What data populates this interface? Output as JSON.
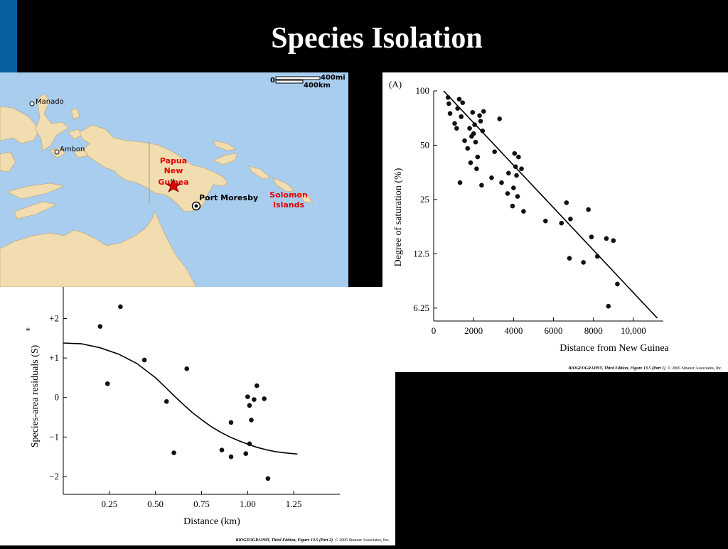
{
  "slide": {
    "title": "Species Isolation"
  },
  "map": {
    "scale": {
      "zero": "0",
      "mi": "400mi",
      "km": "400km"
    },
    "labels": {
      "manado": "Manado",
      "ambon": "Ambon",
      "png": [
        "Papua",
        "New",
        "Guinea"
      ],
      "port_moresby": "Port Moresby",
      "solomon": [
        "Solomon",
        "Islands"
      ]
    },
    "colors": {
      "ocean": "#a8cdee",
      "land": "#f1ddb0",
      "highlight": "#e00000"
    }
  },
  "chart_data": [
    {
      "type": "scatter",
      "panel_label": "(A)",
      "xlabel": "Distance from New Guinea",
      "ylabel": "Degree of saturation (%)",
      "y_scale": "log",
      "xlim": [
        0,
        11500
      ],
      "ylim": [
        5.3,
        100
      ],
      "x_ticks": [
        0,
        2000,
        4000,
        6000,
        8000,
        10000
      ],
      "x_tick_labels": [
        "0",
        "2000",
        "4000",
        "6000",
        "8000",
        "10,000"
      ],
      "y_ticks": [
        100,
        50,
        25,
        12.5,
        6.25
      ],
      "y_tick_labels": [
        "100",
        "50",
        "25",
        "12.5",
        "6.25"
      ],
      "grid": false,
      "points": [
        [
          720,
          92
        ],
        [
          760,
          85
        ],
        [
          820,
          75
        ],
        [
          1050,
          66
        ],
        [
          1150,
          62
        ],
        [
          1200,
          80
        ],
        [
          1280,
          90
        ],
        [
          1380,
          72
        ],
        [
          1450,
          86
        ],
        [
          1550,
          53
        ],
        [
          1700,
          48
        ],
        [
          1800,
          62
        ],
        [
          1850,
          40
        ],
        [
          1900,
          56
        ],
        [
          1950,
          76
        ],
        [
          2000,
          58
        ],
        [
          2050,
          65
        ],
        [
          2100,
          52
        ],
        [
          2150,
          37
        ],
        [
          2200,
          43
        ],
        [
          2300,
          73
        ],
        [
          2350,
          68
        ],
        [
          2400,
          30
        ],
        [
          2450,
          60
        ],
        [
          1320,
          31
        ],
        [
          2500,
          77
        ],
        [
          2900,
          33
        ],
        [
          3050,
          46
        ],
        [
          3300,
          70
        ],
        [
          3400,
          31
        ],
        [
          3700,
          27
        ],
        [
          3750,
          35
        ],
        [
          3950,
          23
        ],
        [
          4000,
          29
        ],
        [
          4050,
          45
        ],
        [
          4100,
          38
        ],
        [
          4150,
          34
        ],
        [
          4200,
          26
        ],
        [
          4250,
          43
        ],
        [
          4400,
          37
        ],
        [
          4500,
          21.5
        ],
        [
          5600,
          19
        ],
        [
          6400,
          18.5
        ],
        [
          6650,
          24
        ],
        [
          6800,
          11.8
        ],
        [
          6850,
          19.5
        ],
        [
          7500,
          11.2
        ],
        [
          7750,
          22
        ],
        [
          7900,
          15.5
        ],
        [
          8200,
          12.1
        ],
        [
          8650,
          15.2
        ],
        [
          8750,
          6.4
        ],
        [
          9000,
          14.8
        ],
        [
          9200,
          8.5
        ]
      ],
      "trend_line": [
        [
          500,
          100
        ],
        [
          11200,
          5.5
        ]
      ],
      "credit": {
        "lead": "BIOGEOGRAPHY, Third Edition, Figure 13.5 (Part 1)",
        "tail": "© 2006 Sinauer Associates, Inc."
      }
    },
    {
      "type": "scatter",
      "xlabel": "Distance (km)",
      "ylabel": "Species-area residuals (S)",
      "ylabel_marker": "*",
      "xlim": [
        0,
        1.5
      ],
      "ylim": [
        -2.45,
        2.8
      ],
      "x_ticks": [
        0.25,
        0.5,
        0.75,
        1.0,
        1.25
      ],
      "x_tick_labels": [
        "0.25",
        "0.50",
        "0.75",
        "1.00",
        "1.25"
      ],
      "y_ticks": [
        2,
        1,
        0,
        -1,
        -2
      ],
      "y_tick_labels": [
        "+2",
        "+1",
        "0",
        "−1",
        "−2"
      ],
      "grid": false,
      "points": [
        [
          0.2,
          1.8
        ],
        [
          0.24,
          0.35
        ],
        [
          0.31,
          2.3
        ],
        [
          0.44,
          0.95
        ],
        [
          0.56,
          -0.1
        ],
        [
          0.6,
          -1.4
        ],
        [
          0.67,
          0.73
        ],
        [
          0.86,
          -1.33
        ],
        [
          0.91,
          -1.5
        ],
        [
          0.91,
          -0.63
        ],
        [
          0.99,
          -1.42
        ],
        [
          1.0,
          0.02
        ],
        [
          1.01,
          -1.17
        ],
        [
          1.01,
          -0.2
        ],
        [
          1.02,
          -0.57
        ],
        [
          1.035,
          -0.05
        ],
        [
          1.05,
          0.3
        ],
        [
          1.09,
          -0.03
        ],
        [
          1.11,
          -2.05
        ]
      ],
      "fit_curve": [
        [
          0.0,
          1.38
        ],
        [
          0.1,
          1.36
        ],
        [
          0.2,
          1.26
        ],
        [
          0.3,
          1.1
        ],
        [
          0.4,
          0.86
        ],
        [
          0.5,
          0.5
        ],
        [
          0.55,
          0.28
        ],
        [
          0.6,
          0.05
        ],
        [
          0.65,
          -0.17
        ],
        [
          0.7,
          -0.38
        ],
        [
          0.75,
          -0.56
        ],
        [
          0.8,
          -0.73
        ],
        [
          0.85,
          -0.87
        ],
        [
          0.9,
          -0.99
        ],
        [
          0.95,
          -1.09
        ],
        [
          1.0,
          -1.18
        ],
        [
          1.05,
          -1.26
        ],
        [
          1.1,
          -1.32
        ],
        [
          1.15,
          -1.37
        ],
        [
          1.2,
          -1.4
        ],
        [
          1.27,
          -1.43
        ]
      ],
      "credit": {
        "lead": "BIOGEOGRAPHY, Third Edition, Figure 13.5 (Part 2)",
        "tail": "© 2006 Sinauer Associates, Inc."
      }
    }
  ]
}
